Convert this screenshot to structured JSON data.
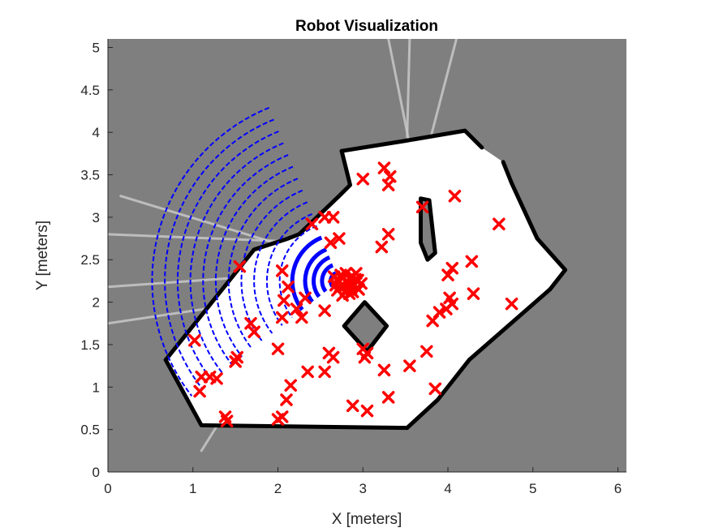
{
  "chart_data": {
    "type": "scatter",
    "title": "Robot Visualization",
    "xlabel": "X [meters]",
    "ylabel": "Y [meters]",
    "xlim": [
      0,
      6.1
    ],
    "ylim": [
      0,
      5.1
    ],
    "xticks": [
      {
        "value": 0,
        "label": "0"
      },
      {
        "value": 1,
        "label": "1"
      },
      {
        "value": 2,
        "label": "2"
      },
      {
        "value": 3,
        "label": "3"
      },
      {
        "value": 4,
        "label": "4"
      },
      {
        "value": 5,
        "label": "5"
      },
      {
        "value": 6,
        "label": "6"
      }
    ],
    "yticks": [
      {
        "value": 0,
        "label": "0"
      },
      {
        "value": 0.5,
        "label": "0.5"
      },
      {
        "value": 1,
        "label": "1"
      },
      {
        "value": 1.5,
        "label": "1.5"
      },
      {
        "value": 2,
        "label": "2"
      },
      {
        "value": 2.5,
        "label": "2.5"
      },
      {
        "value": 3,
        "label": "3"
      },
      {
        "value": 3.5,
        "label": "3.5"
      },
      {
        "value": 4,
        "label": "4"
      },
      {
        "value": 4.5,
        "label": "4.5"
      },
      {
        "value": 5,
        "label": "5"
      }
    ],
    "grid": false,
    "colors": {
      "unknown": "#7f7f7f",
      "free": "#ffffff",
      "occupied": "#000000",
      "scan": "#0000ff",
      "particles": "#ff0000"
    },
    "occupancy_map": {
      "free_region": [
        [
          0.68,
          1.32
        ],
        [
          1.72,
          2.62
        ],
        [
          2.12,
          2.75
        ],
        [
          2.25,
          2.8
        ],
        [
          2.72,
          3.25
        ],
        [
          2.85,
          3.38
        ],
        [
          2.75,
          3.78
        ],
        [
          3.5,
          3.9
        ],
        [
          4.2,
          4.02
        ],
        [
          4.4,
          3.82
        ],
        [
          4.65,
          3.65
        ],
        [
          4.75,
          3.4
        ],
        [
          5.05,
          2.75
        ],
        [
          5.38,
          2.38
        ],
        [
          5.2,
          2.15
        ],
        [
          4.25,
          1.32
        ],
        [
          3.88,
          0.85
        ],
        [
          3.52,
          0.52
        ],
        [
          1.1,
          0.55
        ]
      ],
      "walls": [
        [
          [
            0.68,
            1.32
          ],
          [
            1.72,
            2.62
          ],
          [
            2.12,
            2.75
          ],
          [
            2.25,
            2.8
          ],
          [
            2.72,
            3.25
          ],
          [
            2.85,
            3.38
          ],
          [
            2.75,
            3.78
          ]
        ],
        [
          [
            2.75,
            3.78
          ],
          [
            3.5,
            3.9
          ],
          [
            4.2,
            4.02
          ],
          [
            4.4,
            3.82
          ]
        ],
        [
          [
            4.65,
            3.65
          ],
          [
            4.75,
            3.4
          ],
          [
            5.05,
            2.75
          ],
          [
            5.38,
            2.38
          ],
          [
            5.2,
            2.15
          ]
        ],
        [
          [
            5.2,
            2.15
          ],
          [
            4.25,
            1.32
          ],
          [
            3.88,
            0.85
          ],
          [
            3.52,
            0.52
          ]
        ],
        [
          [
            3.52,
            0.52
          ],
          [
            1.1,
            0.55
          ],
          [
            0.68,
            1.32
          ]
        ]
      ],
      "obstacles": [
        [
          [
            2.78,
            1.72
          ],
          [
            3.05,
            1.42
          ],
          [
            3.28,
            1.72
          ],
          [
            3.02,
            2.0
          ]
        ],
        [
          [
            3.68,
            3.22
          ],
          [
            3.78,
            3.2
          ],
          [
            3.85,
            2.58
          ],
          [
            3.76,
            2.5
          ],
          [
            3.68,
            2.7
          ]
        ]
      ]
    },
    "stray_rays": [
      [
        [
          2.5,
          2.7
        ],
        [
          0.0,
          2.8
        ]
      ],
      [
        [
          2.45,
          2.55
        ],
        [
          0.15,
          3.25
        ]
      ],
      [
        [
          2.4,
          2.35
        ],
        [
          0.0,
          2.18
        ]
      ],
      [
        [
          2.35,
          2.1
        ],
        [
          0.0,
          1.75
        ]
      ],
      [
        [
          3.52,
          3.95
        ],
        [
          3.55,
          5.1
        ]
      ],
      [
        [
          3.8,
          3.95
        ],
        [
          4.1,
          5.1
        ]
      ],
      [
        [
          3.6,
          3.6
        ],
        [
          3.3,
          5.1
        ]
      ],
      [
        [
          1.35,
          0.65
        ],
        [
          1.1,
          0.25
        ]
      ]
    ],
    "robot": {
      "x": 2.72,
      "y": 2.25
    },
    "scan": {
      "angle_min_deg": 112,
      "angle_max_deg": 218,
      "ranges": [
        0.1,
        0.2,
        0.3,
        0.4,
        0.55,
        0.7,
        0.85,
        1.0,
        1.15,
        1.3,
        1.45,
        1.6,
        1.75,
        1.9,
        2.05,
        2.2
      ]
    },
    "particles": {
      "cluster": [
        [
          2.72,
          2.25
        ],
        [
          2.78,
          2.18
        ],
        [
          2.84,
          2.28
        ],
        [
          2.7,
          2.14
        ],
        [
          2.9,
          2.2
        ],
        [
          2.66,
          2.3
        ],
        [
          2.8,
          2.34
        ],
        [
          2.88,
          2.12
        ],
        [
          2.76,
          2.08
        ],
        [
          2.94,
          2.26
        ],
        [
          2.68,
          2.2
        ],
        [
          2.82,
          2.22
        ],
        [
          2.74,
          2.32
        ],
        [
          2.86,
          2.16
        ],
        [
          2.92,
          2.34
        ],
        [
          2.7,
          2.26
        ],
        [
          2.98,
          2.22
        ],
        [
          2.8,
          2.14
        ],
        [
          2.76,
          2.28
        ],
        [
          2.88,
          2.3
        ],
        [
          2.84,
          2.1
        ],
        [
          2.95,
          2.15
        ],
        [
          2.73,
          2.18
        ],
        [
          2.91,
          2.27
        ]
      ],
      "scattered": [
        [
          1.55,
          2.42
        ],
        [
          2.05,
          2.37
        ],
        [
          2.12,
          2.18
        ],
        [
          2.32,
          2.05
        ],
        [
          2.07,
          2.02
        ],
        [
          2.22,
          1.92
        ],
        [
          1.68,
          1.75
        ],
        [
          1.72,
          1.65
        ],
        [
          2.05,
          1.82
        ],
        [
          2.28,
          1.82
        ],
        [
          1.02,
          1.55
        ],
        [
          1.52,
          1.35
        ],
        [
          1.5,
          1.3
        ],
        [
          2.0,
          1.45
        ],
        [
          1.1,
          1.12
        ],
        [
          1.2,
          1.12
        ],
        [
          1.28,
          1.1
        ],
        [
          1.08,
          0.95
        ],
        [
          1.38,
          0.65
        ],
        [
          1.4,
          0.6
        ],
        [
          2.0,
          0.62
        ],
        [
          2.05,
          0.65
        ],
        [
          2.1,
          0.85
        ],
        [
          2.15,
          1.02
        ],
        [
          2.35,
          1.18
        ],
        [
          2.55,
          1.18
        ],
        [
          2.6,
          1.4
        ],
        [
          2.65,
          1.35
        ],
        [
          3.0,
          1.45
        ],
        [
          3.02,
          1.35
        ],
        [
          3.05,
          1.4
        ],
        [
          2.4,
          2.92
        ],
        [
          2.55,
          3.0
        ],
        [
          2.65,
          3.0
        ],
        [
          2.72,
          2.75
        ],
        [
          2.62,
          2.7
        ],
        [
          2.55,
          1.9
        ],
        [
          3.0,
          3.45
        ],
        [
          3.25,
          3.58
        ],
        [
          3.32,
          3.48
        ],
        [
          3.3,
          3.38
        ],
        [
          3.3,
          2.8
        ],
        [
          3.22,
          2.65
        ],
        [
          3.7,
          3.12
        ],
        [
          4.08,
          3.25
        ],
        [
          3.25,
          1.2
        ],
        [
          3.3,
          0.88
        ],
        [
          3.05,
          0.72
        ],
        [
          2.88,
          0.78
        ],
        [
          3.55,
          1.25
        ],
        [
          3.75,
          1.42
        ],
        [
          3.85,
          0.98
        ],
        [
          3.82,
          1.78
        ],
        [
          3.9,
          1.88
        ],
        [
          4.02,
          2.05
        ],
        [
          4.05,
          1.98
        ],
        [
          3.98,
          1.92
        ],
        [
          4.0,
          2.32
        ],
        [
          4.05,
          2.4
        ],
        [
          4.28,
          2.48
        ],
        [
          4.3,
          2.1
        ],
        [
          4.6,
          2.92
        ],
        [
          4.75,
          1.98
        ]
      ]
    }
  }
}
